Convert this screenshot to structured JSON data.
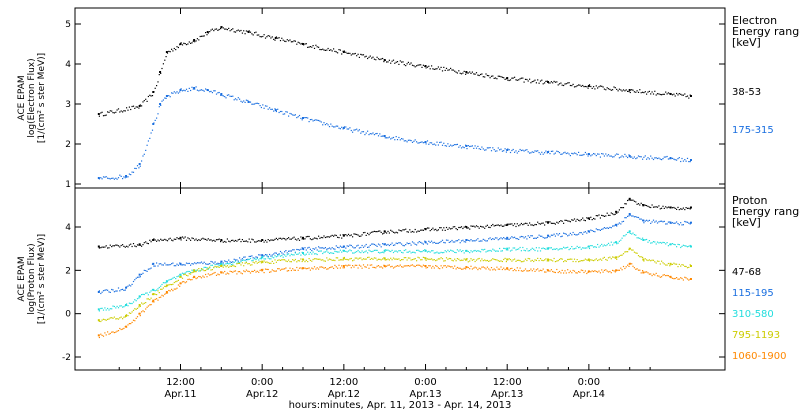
{
  "chart_data": [
    {
      "type": "scatter",
      "title": "",
      "ylabel_lines": [
        "ACE EPAM",
        "log(Electron Flux)",
        "[1/(cm² s ster MeV)]"
      ],
      "ylim": [
        0.9,
        5.4
      ],
      "yticks": [
        1,
        2,
        3,
        4,
        5
      ],
      "legend_title": [
        "Electron",
        "Energy range",
        "[keV]"
      ],
      "series": [
        {
          "name": "38-53",
          "color": "#000000",
          "x": [
            0,
            6,
            8,
            9,
            10,
            12,
            14,
            16,
            18,
            22,
            26,
            30,
            36,
            42,
            48,
            54,
            60,
            66,
            72,
            78,
            84,
            87
          ],
          "values": [
            2.75,
            2.95,
            3.3,
            3.8,
            4.3,
            4.5,
            4.6,
            4.8,
            4.92,
            4.8,
            4.65,
            4.5,
            4.3,
            4.1,
            3.95,
            3.8,
            3.65,
            3.55,
            3.45,
            3.35,
            3.25,
            3.2
          ]
        },
        {
          "name": "175-315",
          "color": "#1a6fe0",
          "x": [
            0,
            4,
            6,
            8,
            9,
            10,
            12,
            14,
            16,
            18,
            22,
            26,
            30,
            36,
            42,
            48,
            54,
            60,
            66,
            72,
            78,
            84,
            87
          ],
          "values": [
            1.15,
            1.2,
            1.5,
            2.5,
            3.0,
            3.2,
            3.35,
            3.4,
            3.35,
            3.25,
            3.05,
            2.85,
            2.65,
            2.4,
            2.2,
            2.05,
            1.95,
            1.85,
            1.8,
            1.75,
            1.7,
            1.65,
            1.6
          ]
        }
      ]
    },
    {
      "type": "scatter",
      "title": "",
      "ylabel_lines": [
        "ACE EPAM",
        "log(Proton Flux)",
        "[1/(cm² s ster MeV)]"
      ],
      "ylim": [
        -2.6,
        5.8
      ],
      "yticks": [
        -2,
        0,
        2,
        4
      ],
      "legend_title": [
        "Proton",
        "Energy range",
        "[keV]"
      ],
      "series": [
        {
          "name": "47-68",
          "color": "#000000",
          "x": [
            0,
            6,
            8,
            12,
            18,
            24,
            30,
            36,
            42,
            48,
            54,
            60,
            66,
            72,
            76,
            78,
            80,
            84,
            87
          ],
          "values": [
            3.1,
            3.2,
            3.4,
            3.5,
            3.4,
            3.4,
            3.5,
            3.6,
            3.8,
            3.9,
            4.0,
            4.1,
            4.2,
            4.4,
            4.7,
            5.3,
            5.0,
            4.9,
            4.9
          ]
        },
        {
          "name": "115-195",
          "color": "#1a6fe0",
          "x": [
            0,
            4,
            6,
            8,
            12,
            18,
            24,
            30,
            36,
            42,
            48,
            54,
            60,
            66,
            72,
            76,
            78,
            80,
            84,
            87
          ],
          "values": [
            1.0,
            1.2,
            1.8,
            2.3,
            2.3,
            2.4,
            2.7,
            3.0,
            3.1,
            3.2,
            3.3,
            3.4,
            3.5,
            3.6,
            3.8,
            4.1,
            4.6,
            4.3,
            4.2,
            4.2
          ]
        },
        {
          "name": "310-580",
          "color": "#22dddd",
          "x": [
            0,
            4,
            6,
            8,
            10,
            12,
            14,
            18,
            24,
            30,
            36,
            42,
            48,
            54,
            60,
            66,
            72,
            76,
            78,
            80,
            84,
            87
          ],
          "values": [
            0.2,
            0.4,
            0.8,
            1.1,
            1.5,
            1.8,
            2.0,
            2.3,
            2.6,
            2.8,
            2.9,
            2.9,
            2.9,
            2.9,
            3.0,
            3.0,
            3.1,
            3.3,
            3.8,
            3.4,
            3.2,
            3.1
          ]
        },
        {
          "name": "795-1193",
          "color": "#cccc00",
          "x": [
            0,
            4,
            6,
            8,
            10,
            12,
            14,
            18,
            24,
            30,
            36,
            42,
            48,
            54,
            60,
            66,
            72,
            76,
            78,
            80,
            84,
            87
          ],
          "values": [
            -0.3,
            -0.1,
            0.4,
            0.9,
            1.3,
            1.7,
            2.0,
            2.2,
            2.4,
            2.5,
            2.55,
            2.55,
            2.55,
            2.5,
            2.5,
            2.5,
            2.5,
            2.6,
            3.0,
            2.5,
            2.3,
            2.2
          ]
        },
        {
          "name": "1060-1900",
          "color": "#ff8800",
          "x": [
            0,
            4,
            6,
            8,
            10,
            12,
            14,
            18,
            24,
            30,
            36,
            42,
            48,
            54,
            60,
            66,
            72,
            76,
            78,
            80,
            84,
            87
          ],
          "values": [
            -1.0,
            -0.6,
            0.0,
            0.6,
            1.0,
            1.4,
            1.7,
            1.9,
            2.0,
            2.1,
            2.2,
            2.2,
            2.2,
            2.15,
            2.1,
            2.0,
            1.95,
            2.0,
            2.3,
            1.9,
            1.7,
            1.6
          ]
        }
      ]
    }
  ],
  "x_axis": {
    "xlim": [
      -3.5,
      92
    ],
    "ticks": [
      {
        "x": 12,
        "time": "12:00",
        "date": "Apr.11"
      },
      {
        "x": 24,
        "time": "0:00",
        "date": "Apr.12"
      },
      {
        "x": 36,
        "time": "12:00",
        "date": "Apr.12"
      },
      {
        "x": 48,
        "time": "0:00",
        "date": "Apr.13"
      },
      {
        "x": 60,
        "time": "12:00",
        "date": "Apr.13"
      },
      {
        "x": 72,
        "time": "0:00",
        "date": "Apr.14"
      }
    ],
    "xlabel": "hours:minutes, Apr. 11, 2013 - Apr. 14, 2013"
  }
}
